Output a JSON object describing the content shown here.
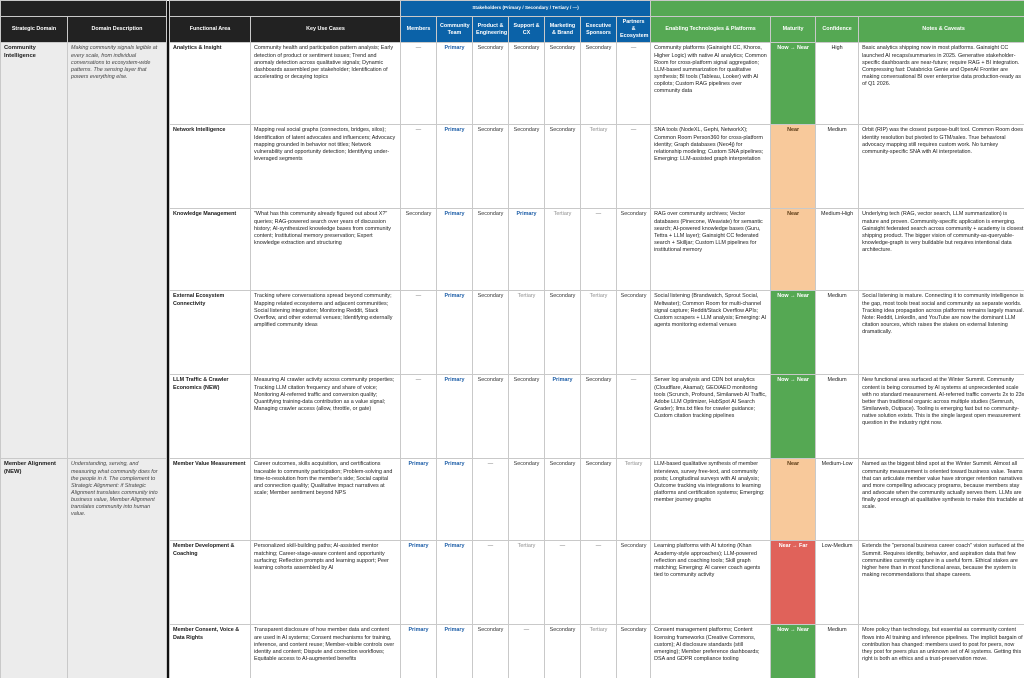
{
  "headers": {
    "stakeholders_group": "Stakeholders (Primary / Secondary / Tertiary / —)",
    "strategic_domain": "Strategic Domain",
    "domain_description": "Domain Description",
    "functional_area": "Functional Area",
    "key_use_cases": "Key Use Cases",
    "stakeholders": [
      "Members",
      "Community Team",
      "Product & Engineering",
      "Support & CX",
      "Marketing & Brand",
      "Executive Sponsors",
      "Partners & Ecosystem"
    ],
    "enabling_tech": "Enabling Technologies & Platforms",
    "maturity": "Maturity",
    "confidence": "Confidence",
    "notes": "Notes & Caveats"
  },
  "colors": {
    "header_dark": "#222222",
    "header_blue": "#0b62a8",
    "header_green": "#55a853",
    "maturity_now_near": "#55a853",
    "maturity_near": "#f8c99b",
    "maturity_near_far": "#e0625a",
    "primary_text": "#1f5fa8"
  },
  "domains": [
    {
      "name": "Community Intelligence",
      "description": "Making community signals legible at every scale, from individual conversations to ecosystem-wide patterns. The sensing layer that powers everything else.",
      "rows": [
        {
          "area": "Analytics & Insight",
          "use_cases": "Community health and participation pattern analysis; Early detection of product or sentiment issues; Trend and anomaly detection across qualitative signals; Dynamic dashboards assembled per stakeholder; Identification of accelerating or decaying topics",
          "stakeholders": [
            "—",
            "Primary",
            "Secondary",
            "Secondary",
            "Secondary",
            "Secondary",
            "—"
          ],
          "tech": "Community platforms (Gainsight CC, Khoros, Higher Logic) with native AI analytics; Common Room for cross-platform signal aggregation; LLM-based summarization for qualitative synthesis; BI tools (Tableau, Looker) with AI copilots; Custom RAG pipelines over community data",
          "maturity": "Now → Near",
          "confidence": "High",
          "notes": "Basic analytics shipping now in most platforms. Gainsight CC launched AI recaps/summaries in 2025. Generative stakeholder-specific dashboards are near-future; require RAG + BI integration. Compressing fast: Databricks Genie and OpenAI Frontier are making conversational BI over enterprise data production-ready as of Q1 2026."
        },
        {
          "area": "Network Intelligence",
          "use_cases": "Mapping real social graphs (connectors, bridges, silos); Identification of latent advocates and influencers; Advocacy mapping grounded in behavior not titles; Network vulnerability and opportunity detection; Identifying under-leveraged segments",
          "stakeholders": [
            "—",
            "Primary",
            "Secondary",
            "Secondary",
            "Secondary",
            "Tertiary",
            "—"
          ],
          "tech": "SNA tools (NodeXL, Gephi, NetworkX); Common Room Person360 for cross-platform identity; Graph databases (Neo4j) for relationship modeling; Custom SNA pipelines; Emerging: LLM-assisted graph interpretation",
          "maturity": "Near",
          "confidence": "Medium",
          "notes": "Orbit (RIP) was the closest purpose-built tool. Common Room does identity resolution but pivoted to GTM/sales. True behavioral advocacy mapping still requires custom work. No turnkey community-specific SNA with AI interpretation."
        },
        {
          "area": "Knowledge Management",
          "use_cases": "\"What has this community already figured out about X?\" queries; RAG-powered search over years of discussion history; AI-synthesized knowledge bases from community content; Institutional memory preservation; Expert knowledge extraction and structuring",
          "stakeholders": [
            "Secondary",
            "Primary",
            "Secondary",
            "Primary",
            "Tertiary",
            "—",
            "Secondary"
          ],
          "tech": "RAG over community archives; Vector databases (Pinecone, Weaviate) for semantic search; AI-powered knowledge bases (Guru, Tettra + LLM layer); Gainsight CC federated search + Skilljar; Custom LLM pipelines for institutional memory",
          "maturity": "Near",
          "confidence": "Medium-High",
          "notes": "Underlying tech (RAG, vector search, LLM summarization) is mature and proven. Community-specific application is emerging. Gainsight federated search across community + academy is closest shipping product. The bigger vision of community-as-queryable-knowledge-graph is very buildable but requires intentional data architecture."
        },
        {
          "area": "External Ecosystem Connectivity",
          "use_cases": "Tracking where conversations spread beyond community; Mapping related ecosystems and adjacent communities; Social listening integration; Monitoring Reddit, Stack Overflow, and other external venues; Identifying externally amplified community ideas",
          "stakeholders": [
            "—",
            "Primary",
            "Secondary",
            "Tertiary",
            "Secondary",
            "Tertiary",
            "Secondary"
          ],
          "tech": "Social listening (Brandwatch, Sprout Social, Meltwater); Common Room for multi-channel signal capture; Reddit/Stack Overflow APIs; Custom scrapers + LLM analysis; Emerging: AI agents monitoring external venues",
          "maturity": "Now → Near",
          "confidence": "Medium",
          "notes": "Social listening is mature. Connecting it to community intelligence is the gap, most tools treat social and community as separate worlds. Tracking idea propagation across platforms remains largely manual. Note: Reddit, LinkedIn, and YouTube are now the dominant LLM citation sources, which raises the stakes on external listening dramatically."
        },
        {
          "area": "LLM Traffic & Crawler Economics (NEW)",
          "use_cases": "Measuring AI crawler activity across community properties; Tracking LLM citation frequency and share of voice; Monitoring AI-referred traffic and conversion quality; Quantifying training-data contribution as a value signal; Managing crawler access (allow, throttle, or gate)",
          "stakeholders": [
            "—",
            "Primary",
            "Secondary",
            "Secondary",
            "Primary",
            "Secondary",
            "—"
          ],
          "tech": "Server log analysis and CDN bot analytics (Cloudflare, Akamai); GEO/AEO monitoring tools (Scrunch, Profound, Similarweb AI Traffic, Adobe LLM Optimizer, HubSpot AI Search Grader); llms.txt files for crawler guidance; Custom citation tracking pipelines",
          "maturity": "Now → Near",
          "confidence": "Medium",
          "notes": "New functional area surfaced at the Winter Summit. Community content is being consumed by AI systems at unprecedented scale with no standard measurement. AI-referred traffic converts 2x to 23x better than traditional organic across multiple studies (Semrush, Similarweb, Outpace). Tooling is emerging fast but no community-native solution exists. This is the single largest open measurement question in the industry right now."
        }
      ]
    },
    {
      "name": "Member Alignment (NEW)",
      "description": "Understanding, serving, and measuring what community does for the people in it. The complement to Strategic Alignment: if Strategic Alignment translates community into business value, Member Alignment translates community into human value.",
      "rows": [
        {
          "area": "Member Value Measurement",
          "use_cases": "Career outcomes, skills acquisition, and certifications traceable to community participation; Problem-solving and time-to-resolution from the member's side; Social capital and connection quality; Qualitative impact narratives at scale; Member sentiment beyond NPS",
          "stakeholders": [
            "Primary",
            "Primary",
            "—",
            "Secondary",
            "Secondary",
            "Secondary",
            "Tertiary"
          ],
          "tech": "LLM-based qualitative synthesis of member interviews, survey free-text, and community posts; Longitudinal surveys with AI analysis; Outcome tracking via integrations to learning platforms and certification systems; Emerging: member journey graphs",
          "maturity": "Near",
          "confidence": "Medium-Low",
          "notes": "Named as the biggest blind spot at the Winter Summit. Almost all community measurement is oriented toward business value. Teams that can articulate member value have stronger retention narratives and more compelling advocacy programs, because members stay and advocate when the community actually serves them. LLMs are finally good enough at qualitative synthesis to make this tractable at scale."
        },
        {
          "area": "Member Development & Coaching",
          "use_cases": "Personalized skill-building paths; AI-assisted mentor matching; Career-stage-aware content and opportunity surfacing; Reflection prompts and learning support; Peer learning cohorts assembled by AI",
          "stakeholders": [
            "Primary",
            "Primary",
            "—",
            "Tertiary",
            "—",
            "—",
            "Secondary"
          ],
          "tech": "Learning platforms with AI tutoring (Khan Academy-style approaches); LLM-powered reflection and coaching tools; Skill graph matching; Emerging: AI career coach agents tied to community activity",
          "maturity": "Near → Far",
          "confidence": "Low-Medium",
          "notes": "Extends the \"personal business career coach\" vision surfaced at the Summit. Requires identity, behavior, and aspiration data that few communities currently capture in a useful form. Ethical stakes are higher here than in most functional areas, because the system is making recommendations that shape careers."
        },
        {
          "area": "Member Consent, Voice & Data Rights",
          "use_cases": "Transparent disclosure of how member data and content are used in AI systems; Consent mechanisms for training, inference, and content reuse; Member-visible controls over identity and content; Dispute and correction workflows; Equitable access to AI-augmented benefits",
          "stakeholders": [
            "Primary",
            "Primary",
            "Secondary",
            "—",
            "Secondary",
            "Tertiary",
            "Secondary"
          ],
          "tech": "Consent management platforms; Content licensing frameworks (Creative Commons, custom); AI disclosure standards (still emerging); Member preference dashboards; DSA and GDPR compliance tooling",
          "maturity": "Now → Near",
          "confidence": "Medium",
          "notes": "More policy than technology, but essential as community content flows into AI training and inference pipelines. The implicit bargain of contribution has changed: members used to post for peers, now they post for peers plus an unknown set of AI systems. Getting this right is both an ethics and a trust-preservation move."
        }
      ]
    }
  ]
}
